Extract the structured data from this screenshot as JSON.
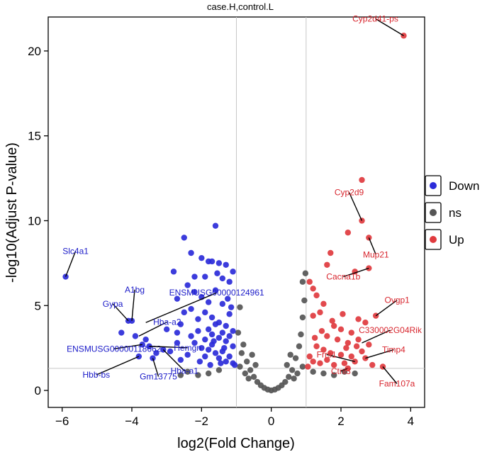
{
  "chart_data": {
    "type": "scatter",
    "title": "case.H,control.L",
    "xlabel": "log2(Fold Change)",
    "ylabel": "-log10(Adjust P-value)",
    "xlim": [
      -6.4,
      4.4
    ],
    "ylim": [
      -1,
      22
    ],
    "x_ticks": [
      -6,
      -4,
      -2,
      0,
      2,
      4
    ],
    "y_ticks": [
      0,
      5,
      10,
      15,
      20
    ],
    "fc_thresholds": [
      -1,
      1
    ],
    "p_threshold": 1.3,
    "legend": {
      "position": "right",
      "entries": [
        {
          "label": "Down",
          "color": "#2b2bd9"
        },
        {
          "label": "ns",
          "color": "#555555"
        },
        {
          "label": "Up",
          "color": "#e03a3e"
        }
      ]
    },
    "series": [
      {
        "name": "Down",
        "color": "#2b2bd9",
        "points": [
          [
            -5.9,
            6.7
          ],
          [
            -4.0,
            4.1
          ],
          [
            -4.1,
            4.1
          ],
          [
            -4.3,
            3.4
          ],
          [
            -3.9,
            3.2
          ],
          [
            -3.6,
            3.0
          ],
          [
            -3.5,
            2.6
          ],
          [
            -3.3,
            2.2
          ],
          [
            -3.7,
            2.7
          ],
          [
            -3.1,
            2.4
          ],
          [
            -3.8,
            2.0
          ],
          [
            -3.4,
            1.9
          ],
          [
            -3.0,
            3.6
          ],
          [
            -2.7,
            2.8
          ],
          [
            -2.9,
            2.3
          ],
          [
            -2.6,
            1.8
          ],
          [
            -2.5,
            9.0
          ],
          [
            -2.3,
            8.1
          ],
          [
            -2.8,
            7.0
          ],
          [
            -2.7,
            5.4
          ],
          [
            -2.5,
            4.6
          ],
          [
            -2.6,
            3.9
          ],
          [
            -2.4,
            6.2
          ],
          [
            -2.2,
            5.8
          ],
          [
            -2.3,
            4.8
          ],
          [
            -2.1,
            4.2
          ],
          [
            -2.0,
            7.8
          ],
          [
            -1.9,
            6.7
          ],
          [
            -1.8,
            7.6
          ],
          [
            -1.7,
            7.6
          ],
          [
            -1.6,
            9.7
          ],
          [
            -1.5,
            7.5
          ],
          [
            -1.4,
            6.6
          ],
          [
            -1.3,
            7.4
          ],
          [
            -1.2,
            6.4
          ],
          [
            -1.1,
            7.0
          ],
          [
            -2.3,
            3.2
          ],
          [
            -2.2,
            2.8
          ],
          [
            -2.1,
            3.5
          ],
          [
            -2.0,
            2.5
          ],
          [
            -1.9,
            3.0
          ],
          [
            -1.8,
            2.4
          ],
          [
            -1.7,
            2.7
          ],
          [
            -1.6,
            2.2
          ],
          [
            -1.5,
            1.9
          ],
          [
            -1.4,
            2.3
          ],
          [
            -1.3,
            1.7
          ],
          [
            -1.2,
            2.0
          ],
          [
            -1.1,
            1.6
          ],
          [
            -1.05,
            1.5
          ],
          [
            -2.0,
            5.5
          ],
          [
            -1.9,
            4.6
          ],
          [
            -1.8,
            5.2
          ],
          [
            -1.7,
            4.3
          ],
          [
            -1.6,
            5.9
          ],
          [
            -1.5,
            4.0
          ],
          [
            -1.4,
            5.1
          ],
          [
            -1.3,
            3.8
          ],
          [
            -1.2,
            4.5
          ],
          [
            -1.1,
            3.5
          ],
          [
            -1.8,
            3.6
          ],
          [
            -1.7,
            3.3
          ],
          [
            -1.6,
            3.9
          ],
          [
            -1.5,
            3.1
          ],
          [
            -1.4,
            3.4
          ],
          [
            -1.3,
            2.9
          ],
          [
            -1.2,
            3.2
          ],
          [
            -1.1,
            2.6
          ],
          [
            -1.9,
            2.0
          ],
          [
            -2.4,
            2.1
          ],
          [
            -2.7,
            3.4
          ],
          [
            -2.2,
            6.7
          ],
          [
            -1.55,
            6.9
          ],
          [
            -1.25,
            5.4
          ],
          [
            -1.15,
            4.9
          ],
          [
            -1.45,
            1.6
          ],
          [
            -1.75,
            1.5
          ],
          [
            -2.05,
            1.7
          ],
          [
            -1.35,
            2.5
          ],
          [
            -1.65,
            2.9
          ]
        ]
      },
      {
        "name": "ns",
        "color": "#555555",
        "points": [
          [
            -0.9,
            4.9
          ],
          [
            -0.95,
            3.4
          ],
          [
            -0.8,
            2.7
          ],
          [
            -0.85,
            2.2
          ],
          [
            -0.7,
            1.7
          ],
          [
            -0.6,
            1.2
          ],
          [
            -0.5,
            0.8
          ],
          [
            -0.4,
            0.5
          ],
          [
            -0.3,
            0.3
          ],
          [
            -0.2,
            0.15
          ],
          [
            -0.1,
            0.05
          ],
          [
            0.0,
            0.0
          ],
          [
            0.1,
            0.05
          ],
          [
            0.2,
            0.15
          ],
          [
            0.3,
            0.3
          ],
          [
            0.4,
            0.5
          ],
          [
            0.5,
            0.8
          ],
          [
            0.6,
            1.2
          ],
          [
            0.7,
            1.9
          ],
          [
            0.8,
            2.6
          ],
          [
            0.85,
            3.3
          ],
          [
            0.9,
            4.3
          ],
          [
            0.95,
            5.3
          ],
          [
            0.9,
            6.4
          ],
          [
            -0.9,
            1.4
          ],
          [
            -0.75,
            1.0
          ],
          [
            -0.65,
            0.7
          ],
          [
            0.65,
            0.7
          ],
          [
            0.75,
            1.0
          ],
          [
            0.9,
            1.4
          ],
          [
            -1.5,
            1.2
          ],
          [
            -1.8,
            1.0
          ],
          [
            -2.1,
            0.9
          ],
          [
            -2.4,
            1.1
          ],
          [
            -2.6,
            0.9
          ],
          [
            1.2,
            1.1
          ],
          [
            1.5,
            1.0
          ],
          [
            1.8,
            0.9
          ],
          [
            2.1,
            1.1
          ],
          [
            2.4,
            1.0
          ],
          [
            -0.55,
            2.1
          ],
          [
            0.55,
            2.1
          ],
          [
            -0.45,
            1.5
          ],
          [
            0.45,
            1.5
          ],
          [
            0.98,
            6.9
          ]
        ]
      },
      {
        "name": "Up",
        "color": "#e03a3e",
        "points": [
          [
            3.8,
            20.9
          ],
          [
            2.6,
            12.4
          ],
          [
            2.6,
            10.0
          ],
          [
            2.2,
            9.3
          ],
          [
            2.8,
            9.0
          ],
          [
            1.7,
            8.1
          ],
          [
            1.6,
            7.4
          ],
          [
            2.8,
            7.2
          ],
          [
            2.4,
            7.0
          ],
          [
            1.1,
            6.4
          ],
          [
            1.2,
            6.0
          ],
          [
            1.3,
            5.6
          ],
          [
            1.5,
            5.1
          ],
          [
            1.4,
            4.6
          ],
          [
            1.2,
            4.4
          ],
          [
            3.0,
            4.4
          ],
          [
            2.5,
            4.2
          ],
          [
            2.7,
            4.0
          ],
          [
            1.8,
            3.8
          ],
          [
            2.0,
            3.6
          ],
          [
            2.3,
            3.4
          ],
          [
            1.6,
            3.2
          ],
          [
            1.9,
            3.0
          ],
          [
            2.2,
            2.8
          ],
          [
            2.5,
            3.0
          ],
          [
            2.8,
            2.7
          ],
          [
            1.3,
            2.6
          ],
          [
            1.5,
            2.4
          ],
          [
            1.7,
            2.2
          ],
          [
            2.0,
            2.1
          ],
          [
            2.3,
            2.0
          ],
          [
            2.6,
            2.3
          ],
          [
            1.1,
            2.0
          ],
          [
            1.2,
            1.7
          ],
          [
            1.4,
            1.6
          ],
          [
            1.6,
            1.8
          ],
          [
            1.8,
            1.5
          ],
          [
            2.1,
            1.6
          ],
          [
            2.4,
            1.7
          ],
          [
            2.7,
            1.9
          ],
          [
            2.9,
            1.5
          ],
          [
            3.2,
            1.4
          ],
          [
            2.2,
            1.3
          ],
          [
            1.05,
            1.4
          ],
          [
            2.05,
            4.5
          ],
          [
            1.25,
            3.1
          ],
          [
            1.45,
            3.5
          ],
          [
            1.75,
            4.1
          ],
          [
            2.15,
            2.5
          ],
          [
            2.45,
            2.6
          ]
        ]
      }
    ],
    "labels": [
      {
        "text": "Cyp2d41-ps",
        "group": "Up",
        "x": 3.8,
        "y": 20.9
      },
      {
        "text": "Cyp2d9",
        "group": "Up",
        "x": 2.6,
        "y": 10.0
      },
      {
        "text": "Mup21",
        "group": "Up",
        "x": 2.8,
        "y": 9.0
      },
      {
        "text": "Cacna1b",
        "group": "Up",
        "x": 2.8,
        "y": 7.2
      },
      {
        "text": "Ovgp1",
        "group": "Up",
        "x": 3.0,
        "y": 4.4
      },
      {
        "text": "C330002G04Rik",
        "group": "Up",
        "x": 2.6,
        "y": 2.8
      },
      {
        "text": "Timp4",
        "group": "Up",
        "x": 2.7,
        "y": 1.9
      },
      {
        "text": "Frrs1",
        "group": "Up",
        "x": 2.4,
        "y": 1.7
      },
      {
        "text": "Ctnl3",
        "group": "Up",
        "x": 2.2,
        "y": 1.3
      },
      {
        "text": "Fam107a",
        "group": "Up",
        "x": 3.2,
        "y": 1.4
      },
      {
        "text": "Slc4a1",
        "group": "Down",
        "x": -5.9,
        "y": 6.7
      },
      {
        "text": "A1bg",
        "group": "Down",
        "x": -4.0,
        "y": 4.1
      },
      {
        "text": "Gypa",
        "group": "Down",
        "x": -4.1,
        "y": 4.1
      },
      {
        "text": "ENSMUSG00000124961",
        "group": "Down",
        "x": -3.6,
        "y": 4.0
      },
      {
        "text": "Hba-a2",
        "group": "Down",
        "x": -3.8,
        "y": 3.2
      },
      {
        "text": "ENSMUSG00000118662",
        "group": "Down",
        "x": -3.7,
        "y": 2.7
      },
      {
        "text": "Hemgn",
        "group": "Down",
        "x": -3.5,
        "y": 2.6
      },
      {
        "text": "Hbb-bs",
        "group": "Down",
        "x": -3.8,
        "y": 2.0
      },
      {
        "text": "Gm13775",
        "group": "Down",
        "x": -3.4,
        "y": 1.9
      },
      {
        "text": "Hba-a1",
        "group": "Down",
        "x": -3.1,
        "y": 2.4
      }
    ]
  }
}
